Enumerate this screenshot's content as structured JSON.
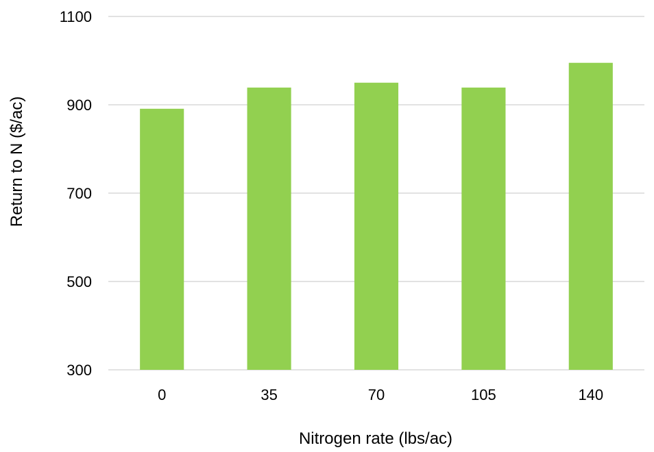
{
  "chart_data": {
    "type": "bar",
    "title": "",
    "xlabel": "Nitrogen rate (lbs/ac)",
    "ylabel": "Return to N ($/ac)",
    "categories": [
      "0",
      "35",
      "70",
      "105",
      "140"
    ],
    "values": [
      891,
      939,
      950,
      939,
      995
    ],
    "ylim": [
      300,
      1100
    ],
    "yticks": [
      "300",
      "500",
      "700",
      "900",
      "1100"
    ],
    "grid": true,
    "legend": "none",
    "bar_color": "#92d050",
    "grid_color": "#d9d9d9"
  }
}
